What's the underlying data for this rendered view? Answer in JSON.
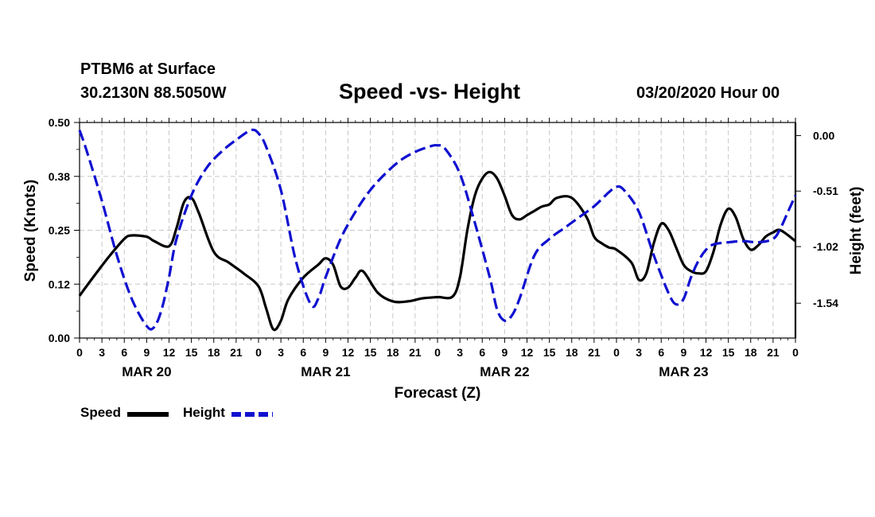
{
  "header": {
    "station": "PTBM6 at Surface",
    "coords": "30.2130N 88.5050W",
    "title": "Speed -vs- Height",
    "run_time": "03/20/2020 Hour 00"
  },
  "legend": {
    "speed_label": "Speed",
    "height_label": "Height"
  },
  "colors": {
    "speed": "#000000",
    "height": "#1010d0",
    "grid": "#c8c8c8"
  },
  "chart_data": {
    "type": "line",
    "title": "Speed -vs- Height",
    "xlabel": "Forecast (Z)",
    "ylabel": "Speed (Knots)",
    "y2label": "Height (feet)",
    "x_range": [
      0,
      96
    ],
    "ylim": [
      0,
      0.5
    ],
    "y2lim": [
      -1.86,
      0.12
    ],
    "x_ticks": [
      0,
      3,
      6,
      9,
      12,
      15,
      18,
      21,
      24,
      27,
      30,
      33,
      36,
      39,
      42,
      45,
      48,
      51,
      54,
      57,
      60,
      63,
      66,
      69,
      72,
      75,
      78,
      81,
      84,
      87,
      90,
      93,
      96
    ],
    "x_tick_labels": [
      "0",
      "3",
      "6",
      "9",
      "12",
      "15",
      "18",
      "21",
      "0",
      "3",
      "6",
      "9",
      "12",
      "15",
      "18",
      "21",
      "0",
      "3",
      "6",
      "9",
      "12",
      "15",
      "18",
      "21",
      "0",
      "3",
      "6",
      "9",
      "12",
      "15",
      "18",
      "21",
      "0"
    ],
    "day_labels": [
      {
        "label": "MAR 20",
        "x": 9
      },
      {
        "label": "MAR 21",
        "x": 33
      },
      {
        "label": "MAR 22",
        "x": 57
      },
      {
        "label": "MAR 23",
        "x": 81
      }
    ],
    "y_ticks": [
      0,
      0.125,
      0.25,
      0.375,
      0.5
    ],
    "y_tick_labels": [
      "0.00",
      "0.12",
      "0.25",
      "0.38",
      "0.50"
    ],
    "y2_ticks": [
      0.0,
      -0.51,
      -1.02,
      -1.54
    ],
    "y2_tick_labels": [
      "0.00",
      "-0.51",
      "-1.02",
      "-1.54"
    ],
    "series": [
      {
        "name": "Speed",
        "axis": "left",
        "style": "solid",
        "x": [
          0,
          2,
          4,
          6,
          7,
          9,
          10,
          12,
          13,
          14,
          15,
          16,
          18,
          20,
          22,
          24,
          25,
          26,
          27,
          28,
          30,
          32,
          33,
          34,
          35,
          36,
          37,
          38,
          40,
          42,
          44,
          46,
          48,
          50,
          51,
          52,
          53,
          54,
          55,
          56,
          57,
          58,
          59,
          60,
          61,
          62,
          63,
          64,
          66,
          68,
          69,
          70,
          71,
          72,
          74,
          75,
          76,
          77,
          78,
          79,
          80,
          81,
          82,
          83,
          84,
          85,
          86,
          87,
          88,
          89,
          90,
          91,
          92,
          93,
          94,
          96
        ],
        "y": [
          0.098,
          0.145,
          0.19,
          0.23,
          0.238,
          0.235,
          0.225,
          0.213,
          0.255,
          0.315,
          0.325,
          0.29,
          0.2,
          0.175,
          0.15,
          0.12,
          0.07,
          0.02,
          0.04,
          0.09,
          0.14,
          0.17,
          0.185,
          0.17,
          0.12,
          0.117,
          0.14,
          0.155,
          0.105,
          0.085,
          0.085,
          0.092,
          0.095,
          0.096,
          0.14,
          0.25,
          0.33,
          0.37,
          0.385,
          0.37,
          0.33,
          0.285,
          0.275,
          0.285,
          0.295,
          0.305,
          0.31,
          0.325,
          0.325,
          0.28,
          0.235,
          0.22,
          0.21,
          0.205,
          0.175,
          0.135,
          0.15,
          0.22,
          0.265,
          0.25,
          0.21,
          0.17,
          0.155,
          0.15,
          0.155,
          0.2,
          0.265,
          0.3,
          0.28,
          0.23,
          0.205,
          0.215,
          0.235,
          0.245,
          0.25,
          0.225
        ]
      },
      {
        "name": "Height",
        "axis": "right",
        "style": "dashed",
        "x": [
          0,
          1,
          3,
          5,
          7,
          9,
          10,
          11,
          12,
          13,
          15,
          17,
          19,
          21,
          23,
          24,
          25,
          27,
          29,
          31,
          32,
          33,
          35,
          37,
          39,
          41,
          43,
          45,
          47,
          48,
          49,
          51,
          53,
          55,
          56,
          57,
          58,
          59,
          61,
          63,
          65,
          67,
          69,
          71,
          72,
          73,
          75,
          77,
          79,
          80,
          81,
          82,
          83,
          84,
          85,
          87,
          89,
          91,
          93,
          94,
          95,
          96
        ],
        "y": [
          0.05,
          -0.15,
          -0.6,
          -1.1,
          -1.5,
          -1.75,
          -1.76,
          -1.6,
          -1.3,
          -0.95,
          -0.55,
          -0.3,
          -0.15,
          -0.04,
          0.05,
          0.02,
          -0.1,
          -0.5,
          -1.15,
          -1.55,
          -1.5,
          -1.3,
          -0.95,
          -0.7,
          -0.5,
          -0.35,
          -0.23,
          -0.15,
          -0.1,
          -0.09,
          -0.12,
          -0.35,
          -0.8,
          -1.3,
          -1.6,
          -1.7,
          -1.65,
          -1.5,
          -1.1,
          -0.95,
          -0.85,
          -0.75,
          -0.65,
          -0.52,
          -0.47,
          -0.5,
          -0.7,
          -1.1,
          -1.45,
          -1.55,
          -1.5,
          -1.3,
          -1.15,
          -1.05,
          -1.0,
          -0.98,
          -0.97,
          -0.98,
          -0.95,
          -0.85,
          -0.7,
          -0.55
        ]
      }
    ]
  }
}
